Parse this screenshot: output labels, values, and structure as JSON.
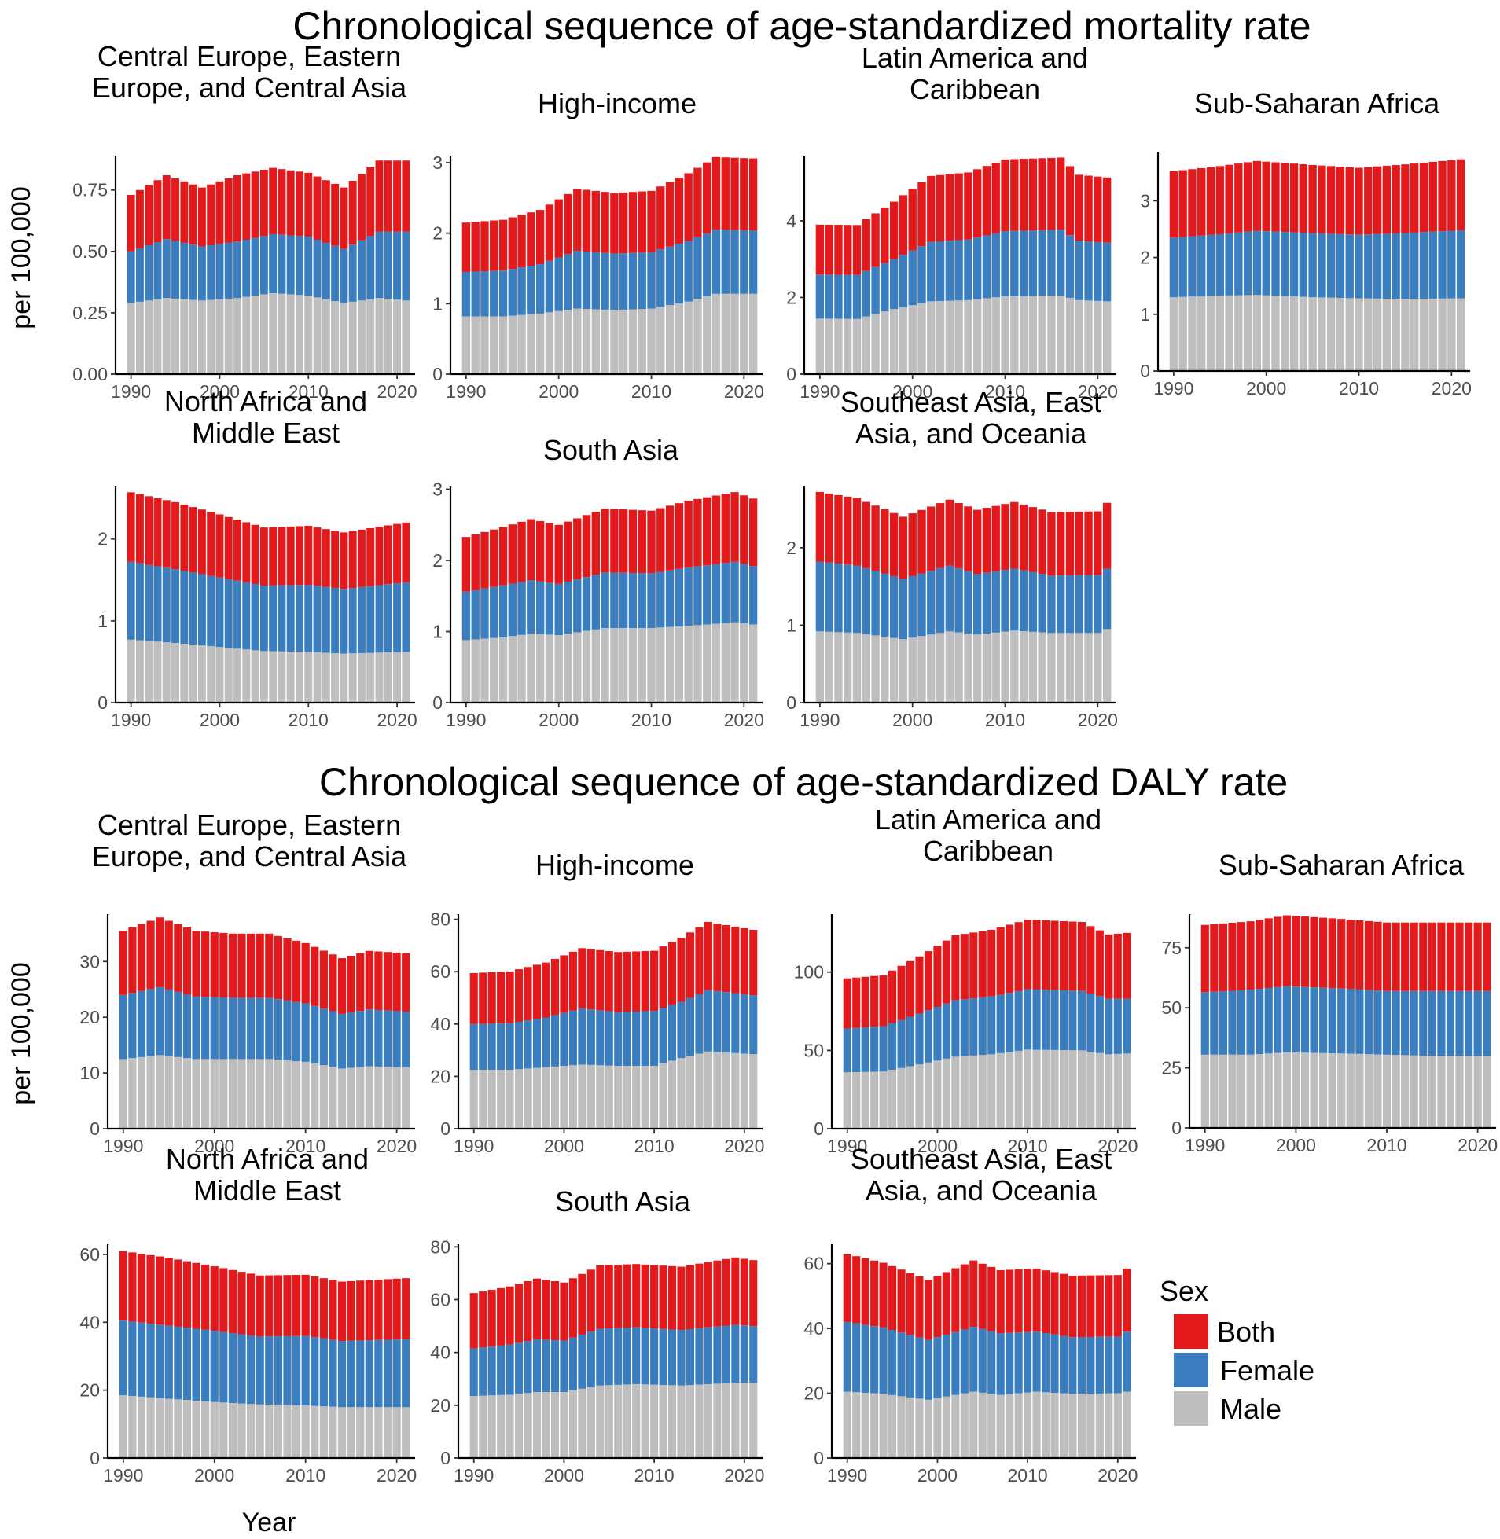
{
  "figure": {
    "sections": [
      {
        "id": "mortality",
        "title": "Chronological sequence of age-standardized mortality rate",
        "ylabel": "per 100,000"
      },
      {
        "id": "daly",
        "title": "Chronological sequence of age-standardized DALY rate",
        "ylabel": "per 100,000"
      }
    ],
    "xlabel": "Year",
    "legend": {
      "title": "Sex",
      "items": [
        "Both",
        "Female",
        "Male"
      ]
    },
    "colors": {
      "Both": "#e31a1c",
      "Female": "#3a7ebf",
      "Male": "#bebebe"
    }
  },
  "chart_data": [
    {
      "type": "bar",
      "stacked": true,
      "section": "mortality",
      "title_lines": [
        "Central Europe, Eastern",
        "Europe, and Central Asia"
      ],
      "x_range": [
        1990,
        2021
      ],
      "x_ticks": [
        1990,
        2000,
        2010,
        2020
      ],
      "y_ticks": [
        0,
        0.25,
        0.5,
        0.75
      ],
      "y_tick_labels": [
        "0.00",
        "0.25",
        "0.50",
        "0.75"
      ],
      "ylim": [
        0,
        0.89
      ],
      "anchors": {
        "x": [
          1990,
          1994,
          1998,
          2002,
          2006,
          2010,
          2014,
          2018,
          2021
        ],
        "Male": [
          0.29,
          0.31,
          0.3,
          0.31,
          0.33,
          0.32,
          0.29,
          0.31,
          0.3
        ],
        "Female": [
          0.21,
          0.24,
          0.22,
          0.23,
          0.24,
          0.24,
          0.22,
          0.27,
          0.28
        ],
        "Both": [
          0.23,
          0.26,
          0.24,
          0.27,
          0.27,
          0.26,
          0.25,
          0.29,
          0.29
        ]
      }
    },
    {
      "type": "bar",
      "stacked": true,
      "section": "mortality",
      "title_lines": [
        "High-income"
      ],
      "x_range": [
        1990,
        2021
      ],
      "x_ticks": [
        1990,
        2000,
        2010,
        2020
      ],
      "y_ticks": [
        0,
        1,
        2,
        3
      ],
      "y_tick_labels": [
        "0",
        "1",
        "2",
        "3"
      ],
      "ylim": [
        0,
        3.1
      ],
      "anchors": {
        "x": [
          1990,
          1994,
          1998,
          2002,
          2006,
          2010,
          2014,
          2017,
          2021
        ],
        "Male": [
          0.82,
          0.82,
          0.86,
          0.93,
          0.91,
          0.93,
          1.03,
          1.14,
          1.14
        ],
        "Female": [
          0.63,
          0.65,
          0.7,
          0.82,
          0.8,
          0.8,
          0.86,
          0.91,
          0.9
        ],
        "Both": [
          0.7,
          0.72,
          0.77,
          0.88,
          0.86,
          0.87,
          0.96,
          1.03,
          1.02
        ]
      }
    },
    {
      "type": "bar",
      "stacked": true,
      "section": "mortality",
      "title_lines": [
        "Latin America and",
        "Caribbean"
      ],
      "x_range": [
        1990,
        2021
      ],
      "x_ticks": [
        1990,
        2000,
        2010,
        2020
      ],
      "y_ticks": [
        0,
        2,
        4
      ],
      "y_tick_labels": [
        "0",
        "2",
        "4"
      ],
      "ylim": [
        0,
        5.7
      ],
      "anchors": {
        "x": [
          1990,
          1994,
          1998,
          2002,
          2006,
          2010,
          2016,
          2018,
          2021
        ],
        "Male": [
          1.45,
          1.44,
          1.7,
          1.9,
          1.93,
          2.03,
          2.05,
          1.93,
          1.9
        ],
        "Female": [
          1.15,
          1.15,
          1.3,
          1.55,
          1.58,
          1.7,
          1.72,
          1.55,
          1.53
        ],
        "Both": [
          1.3,
          1.3,
          1.5,
          1.72,
          1.75,
          1.87,
          1.88,
          1.72,
          1.7
        ]
      }
    },
    {
      "type": "bar",
      "stacked": true,
      "section": "mortality",
      "title_lines": [
        "Sub-Saharan Africa"
      ],
      "x_range": [
        1990,
        2021
      ],
      "x_ticks": [
        1990,
        2000,
        2010,
        2020
      ],
      "y_ticks": [
        0,
        1,
        2,
        3
      ],
      "y_tick_labels": [
        "0",
        "1",
        "2",
        "3"
      ],
      "ylim": [
        0,
        3.85
      ],
      "anchors": {
        "x": [
          1990,
          1995,
          1999,
          2005,
          2010,
          2015,
          2021
        ],
        "Male": [
          1.3,
          1.33,
          1.34,
          1.3,
          1.28,
          1.27,
          1.28
        ],
        "Female": [
          1.05,
          1.08,
          1.13,
          1.13,
          1.12,
          1.16,
          1.2
        ],
        "Both": [
          1.17,
          1.2,
          1.23,
          1.2,
          1.18,
          1.21,
          1.25
        ]
      }
    },
    {
      "type": "bar",
      "stacked": true,
      "section": "mortality",
      "title_lines": [
        "North Africa and",
        "Middle East"
      ],
      "x_range": [
        1990,
        2021
      ],
      "x_ticks": [
        1990,
        2000,
        2010,
        2020
      ],
      "y_ticks": [
        0,
        1,
        2
      ],
      "y_tick_labels": [
        "0",
        "1",
        "2"
      ],
      "ylim": [
        0,
        2.65
      ],
      "anchors": {
        "x": [
          1990,
          1995,
          2000,
          2005,
          2010,
          2014,
          2021
        ],
        "Male": [
          0.77,
          0.73,
          0.68,
          0.63,
          0.62,
          0.6,
          0.62
        ],
        "Female": [
          0.95,
          0.9,
          0.85,
          0.8,
          0.82,
          0.79,
          0.85
        ],
        "Both": [
          0.85,
          0.82,
          0.77,
          0.71,
          0.72,
          0.69,
          0.73
        ]
      }
    },
    {
      "type": "bar",
      "stacked": true,
      "section": "mortality",
      "title_lines": [
        "South Asia"
      ],
      "x_range": [
        1990,
        2021
      ],
      "x_ticks": [
        1990,
        2000,
        2010,
        2020
      ],
      "y_ticks": [
        0,
        1,
        2,
        3
      ],
      "y_tick_labels": [
        "0",
        "1",
        "2",
        "3"
      ],
      "ylim": [
        0,
        3.05
      ],
      "anchors": {
        "x": [
          1990,
          1994,
          1997,
          2000,
          2005,
          2010,
          2014,
          2019,
          2021
        ],
        "Male": [
          0.88,
          0.92,
          0.97,
          0.95,
          1.05,
          1.05,
          1.08,
          1.13,
          1.1
        ],
        "Female": [
          0.68,
          0.73,
          0.75,
          0.72,
          0.78,
          0.77,
          0.82,
          0.85,
          0.82
        ],
        "Both": [
          0.77,
          0.82,
          0.86,
          0.83,
          0.9,
          0.88,
          0.94,
          0.98,
          0.95
        ]
      }
    },
    {
      "type": "bar",
      "stacked": true,
      "section": "mortality",
      "title_lines": [
        "Southeast Asia, East",
        "Asia, and Oceania"
      ],
      "x_range": [
        1990,
        2021
      ],
      "x_ticks": [
        1990,
        2000,
        2010,
        2020
      ],
      "y_ticks": [
        0,
        1,
        2
      ],
      "y_tick_labels": [
        "0",
        "1",
        "2"
      ],
      "ylim": [
        0,
        2.8
      ],
      "anchors": {
        "x": [
          1990,
          1994,
          1999,
          2004,
          2007,
          2011,
          2015,
          2020,
          2021
        ],
        "Male": [
          0.92,
          0.9,
          0.82,
          0.92,
          0.88,
          0.93,
          0.9,
          0.9,
          0.95
        ],
        "Female": [
          0.9,
          0.87,
          0.78,
          0.85,
          0.78,
          0.8,
          0.74,
          0.75,
          0.78
        ],
        "Both": [
          0.9,
          0.87,
          0.8,
          0.85,
          0.83,
          0.86,
          0.82,
          0.82,
          0.85
        ]
      }
    },
    {
      "type": "bar",
      "stacked": true,
      "section": "daly",
      "title_lines": [
        "Central Europe, Eastern",
        "Europe, and Central Asia"
      ],
      "x_range": [
        1990,
        2021
      ],
      "x_ticks": [
        1990,
        2000,
        2010,
        2020
      ],
      "y_ticks": [
        0,
        10,
        20,
        30
      ],
      "y_tick_labels": [
        "0",
        "10",
        "20",
        "30"
      ],
      "ylim": [
        0,
        38.5
      ],
      "anchors": {
        "x": [
          1990,
          1994,
          1998,
          2002,
          2006,
          2010,
          2014,
          2017,
          2021
        ],
        "Male": [
          12.5,
          13.2,
          12.5,
          12.5,
          12.5,
          12.0,
          10.8,
          11.2,
          11.0
        ],
        "Female": [
          11.5,
          12.2,
          11.2,
          11.0,
          11.0,
          10.5,
          9.8,
          10.2,
          10.0
        ],
        "Both": [
          11.5,
          12.5,
          11.8,
          11.5,
          11.5,
          10.8,
          10.0,
          10.5,
          10.5
        ]
      }
    },
    {
      "type": "bar",
      "stacked": true,
      "section": "daly",
      "title_lines": [
        "High-income"
      ],
      "x_range": [
        1990,
        2021
      ],
      "x_ticks": [
        1990,
        2000,
        2010,
        2020
      ],
      "y_ticks": [
        0,
        20,
        40,
        60,
        80
      ],
      "y_tick_labels": [
        "0",
        "20",
        "40",
        "60",
        "80"
      ],
      "ylim": [
        0,
        82
      ],
      "anchors": {
        "x": [
          1990,
          1994,
          1998,
          2002,
          2006,
          2010,
          2013,
          2016,
          2021
        ],
        "Male": [
          22.5,
          22.5,
          23.5,
          24.5,
          24.0,
          24.0,
          27.0,
          29.5,
          28.5
        ],
        "Female": [
          17.5,
          17.8,
          19.0,
          21.5,
          20.5,
          21.0,
          21.5,
          23.5,
          22.5
        ],
        "Both": [
          19.5,
          19.8,
          21.0,
          23.0,
          23.0,
          23.0,
          24.5,
          26.0,
          25.0
        ]
      }
    },
    {
      "type": "bar",
      "stacked": true,
      "section": "daly",
      "title_lines": [
        "Latin America and",
        "Caribbean"
      ],
      "x_range": [
        1990,
        2021
      ],
      "x_ticks": [
        1990,
        2000,
        2010,
        2020
      ],
      "y_ticks": [
        0,
        50,
        100
      ],
      "y_tick_labels": [
        "0",
        "50",
        "100"
      ],
      "ylim": [
        0,
        137
      ],
      "anchors": {
        "x": [
          1990,
          1994,
          1998,
          2002,
          2006,
          2010,
          2016,
          2019,
          2021
        ],
        "Male": [
          36.0,
          36.5,
          41.0,
          46.0,
          47.5,
          50.5,
          50.0,
          47.5,
          48.0
        ],
        "Female": [
          28.0,
          29.0,
          32.5,
          36.0,
          37.0,
          38.5,
          38.0,
          35.5,
          35.0
        ],
        "Both": [
          32.0,
          32.5,
          36.5,
          41.5,
          42.5,
          44.5,
          44.0,
          41.0,
          42.0
        ]
      }
    },
    {
      "type": "bar",
      "stacked": true,
      "section": "daly",
      "title_lines": [
        "Sub-Saharan Africa"
      ],
      "x_range": [
        1990,
        2021
      ],
      "x_ticks": [
        1990,
        2000,
        2010,
        2020
      ],
      "y_ticks": [
        0,
        25,
        50,
        75
      ],
      "y_tick_labels": [
        "0",
        "25",
        "50",
        "75"
      ],
      "ylim": [
        0,
        89
      ],
      "anchors": {
        "x": [
          1990,
          1995,
          1999,
          2005,
          2010,
          2015,
          2021
        ],
        "Male": [
          30.5,
          30.5,
          31.5,
          31.0,
          30.5,
          30.0,
          30.0
        ],
        "Female": [
          26.0,
          27.0,
          27.5,
          27.0,
          26.5,
          27.0,
          27.0
        ],
        "Both": [
          28.0,
          28.5,
          29.5,
          29.0,
          28.5,
          28.5,
          28.5
        ]
      }
    },
    {
      "type": "bar",
      "stacked": true,
      "section": "daly",
      "title_lines": [
        "North Africa and",
        "Middle East"
      ],
      "x_range": [
        1990,
        2021
      ],
      "x_ticks": [
        1990,
        2000,
        2010,
        2020
      ],
      "y_ticks": [
        0,
        20,
        40,
        60
      ],
      "y_tick_labels": [
        "0",
        "20",
        "40",
        "60"
      ],
      "ylim": [
        0,
        63
      ],
      "anchors": {
        "x": [
          1990,
          1995,
          2000,
          2005,
          2010,
          2014,
          2021
        ],
        "Male": [
          18.5,
          17.5,
          16.5,
          15.8,
          15.5,
          15.0,
          15.0
        ],
        "Female": [
          22.0,
          21.5,
          21.0,
          20.0,
          20.5,
          19.5,
          20.0
        ],
        "Both": [
          20.5,
          20.0,
          19.0,
          18.0,
          18.0,
          17.5,
          18.0
        ]
      }
    },
    {
      "type": "bar",
      "stacked": true,
      "section": "daly",
      "title_lines": [
        "South Asia"
      ],
      "x_range": [
        1990,
        2021
      ],
      "x_ticks": [
        1990,
        2000,
        2010,
        2020
      ],
      "y_ticks": [
        0,
        20,
        40,
        60,
        80
      ],
      "y_tick_labels": [
        "0",
        "20",
        "40",
        "60",
        "80"
      ],
      "ylim": [
        0,
        81
      ],
      "anchors": {
        "x": [
          1990,
          1994,
          1997,
          2000,
          2004,
          2008,
          2013,
          2019,
          2021
        ],
        "Male": [
          23.5,
          24.0,
          25.0,
          25.0,
          27.5,
          28.0,
          27.5,
          28.5,
          28.5
        ],
        "Female": [
          18.0,
          19.0,
          20.0,
          19.5,
          21.5,
          21.5,
          21.0,
          22.0,
          21.5
        ],
        "Both": [
          21.0,
          22.0,
          23.0,
          22.0,
          24.0,
          24.0,
          24.0,
          25.5,
          25.0
        ]
      }
    },
    {
      "type": "bar",
      "stacked": true,
      "section": "daly",
      "title_lines": [
        "Southeast Asia, East",
        "Asia, and Oceania"
      ],
      "x_range": [
        1990,
        2021
      ],
      "x_ticks": [
        1990,
        2000,
        2010,
        2020
      ],
      "y_ticks": [
        0,
        20,
        40,
        60
      ],
      "y_tick_labels": [
        "0",
        "20",
        "40",
        "60"
      ],
      "ylim": [
        0,
        66
      ],
      "anchors": {
        "x": [
          1990,
          1994,
          1999,
          2004,
          2007,
          2011,
          2015,
          2020,
          2021
        ],
        "Male": [
          20.5,
          19.8,
          18.0,
          20.5,
          19.5,
          20.5,
          19.8,
          20.0,
          20.5
        ],
        "Female": [
          21.5,
          20.5,
          18.5,
          20.0,
          19.0,
          18.5,
          17.5,
          17.5,
          18.5
        ],
        "Both": [
          21.0,
          20.0,
          18.5,
          20.5,
          19.5,
          19.5,
          19.0,
          19.0,
          19.5
        ]
      }
    }
  ]
}
